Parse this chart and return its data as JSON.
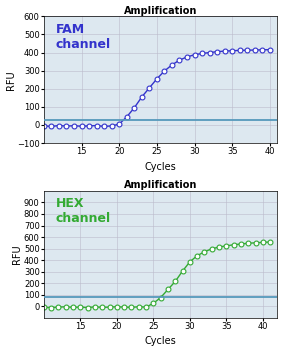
{
  "title": "Amplification",
  "fam_label": "FAM\nchannel",
  "hex_label": "HEX\nchannel",
  "fam_color": "#3333cc",
  "hex_color": "#33aa33",
  "threshold_color": "#5599bb",
  "fam_ylim": [
    -100,
    600
  ],
  "fam_yticks": [
    -100,
    0,
    100,
    200,
    300,
    400,
    500,
    600
  ],
  "hex_ylim": [
    -100,
    1000
  ],
  "hex_yticks": [
    0,
    100,
    200,
    300,
    400,
    500,
    600,
    700,
    800,
    900
  ],
  "xlim": [
    10,
    41
  ],
  "xticks": [
    15,
    20,
    25,
    30,
    35,
    40
  ],
  "xlabel": "Cycles",
  "ylabel": "RFU",
  "fam_threshold": 30,
  "hex_threshold": 80,
  "bg_color": "#dde8f0",
  "grid_color": "#bbbbcc",
  "fam_cycles": [
    10,
    11,
    12,
    13,
    14,
    15,
    16,
    17,
    18,
    19,
    20,
    21,
    22,
    23,
    24,
    25,
    26,
    27,
    28,
    29,
    30,
    31,
    32,
    33,
    34,
    35,
    36,
    37,
    38,
    39,
    40
  ],
  "fam_values": [
    -5,
    -8,
    -3,
    -6,
    -4,
    -7,
    -5,
    -3,
    -8,
    -5,
    5,
    45,
    95,
    155,
    205,
    255,
    298,
    332,
    358,
    376,
    388,
    395,
    400,
    405,
    408,
    410,
    412,
    413,
    414,
    415,
    416
  ],
  "hex_cycles": [
    10,
    11,
    12,
    13,
    14,
    15,
    16,
    17,
    18,
    19,
    20,
    21,
    22,
    23,
    24,
    25,
    26,
    27,
    28,
    29,
    30,
    31,
    32,
    33,
    34,
    35,
    36,
    37,
    38,
    39,
    40,
    41
  ],
  "hex_values": [
    -10,
    -12,
    -8,
    -5,
    -10,
    -8,
    -12,
    -6,
    -10,
    -8,
    -5,
    -8,
    -10,
    -5,
    -8,
    25,
    75,
    145,
    215,
    305,
    385,
    438,
    472,
    498,
    513,
    524,
    533,
    540,
    546,
    550,
    554,
    557
  ]
}
